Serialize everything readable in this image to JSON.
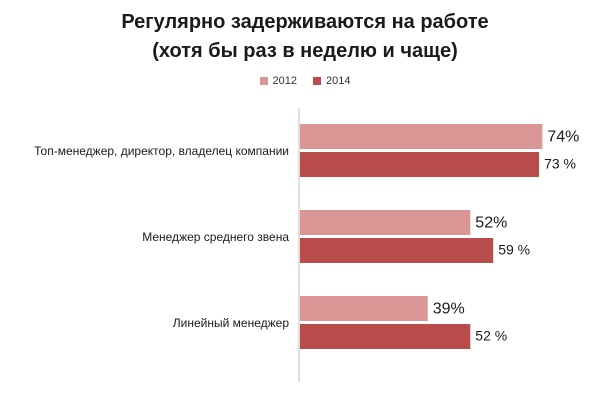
{
  "chart_data": {
    "type": "bar",
    "orientation": "horizontal",
    "title_lines": [
      "Регулярно задерживаются на работе",
      "(хотя бы раз в неделю и чаще)"
    ],
    "categories": [
      "Топ-менеджер, директор, владелец компании",
      "Менеджер среднего звена",
      "Линейный менеджер"
    ],
    "series": [
      {
        "name": "2012",
        "color": "#d99694",
        "values": [
          74,
          52,
          39
        ],
        "labels": [
          "74%",
          "52%",
          "39%"
        ]
      },
      {
        "name": "2014",
        "color": "#b84c4a",
        "values": [
          73,
          59,
          52
        ],
        "labels": [
          "73 %",
          "59 %",
          "52 %"
        ]
      }
    ],
    "xlim": [
      0,
      100
    ],
    "legend_position": "top",
    "grid": false
  }
}
